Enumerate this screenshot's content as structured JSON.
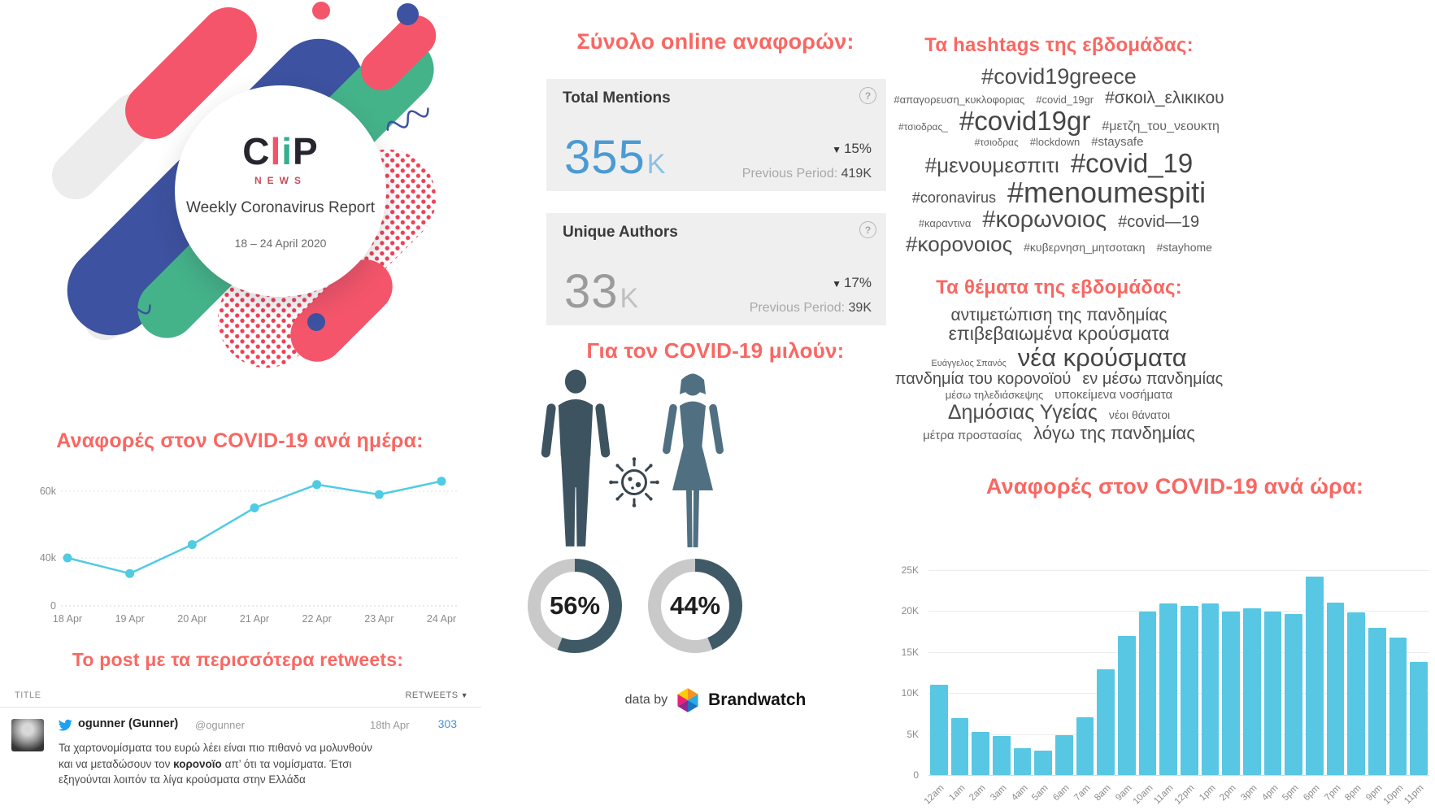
{
  "colors": {
    "accent_red": "#f96762",
    "bar_cyan": "#57c7e3",
    "line_cyan": "#4fcbe3",
    "mentions_blue": "#4b9bd3",
    "authors_gray": "#9b9b9b",
    "donut_dark": "#3f5a66",
    "donut_rest": "#c9c9c9",
    "male_fill": "#3d5360",
    "female_fill": "#507082",
    "twitter_blue": "#1da1f2",
    "retweet_blue": "#4a90d9"
  },
  "logo": {
    "letters": [
      {
        "t": "C"
      },
      {
        "t": "l"
      },
      {
        "t": "i"
      },
      {
        "t": "P"
      }
    ],
    "subbrand": "NEWS",
    "report_title": "Weekly Coronavirus Report",
    "date_range": "18 – 24 April 2020"
  },
  "left": {
    "daily_heading": "Αναφορές στον COVID-19 ανά ημέρα:",
    "top_post_heading": "Το post με τα περισσότερα retweets:",
    "table": {
      "col_title": "TITLE",
      "col_retweets": "RETWEETS",
      "sort_arrow": "▼",
      "author": "ogunner (Gunner)",
      "handle": "@ogunner",
      "date": "18th Apr",
      "retweets": "303",
      "text_before": "Τα χαρτονομίσματα του ευρώ λέει είναι πιο πιθανό να μολυνθούν και να μεταδώσουν τον ",
      "text_bold": "κορονοϊο",
      "text_after": " απ’ ότι τα νομίσματα. Έτσι εξηγούνται λοιπόν τα λίγα κρούσματα στην Ελλάδα"
    }
  },
  "middle": {
    "totals_heading": "Σύνολο online αναφορών:",
    "panels": [
      {
        "label": "Total Mentions",
        "value": "355",
        "unit": "K",
        "arrow": "▼",
        "change": "15%",
        "prev_label": "Previous Period:",
        "prev_value": "419K",
        "help": "?"
      },
      {
        "label": "Unique Authors",
        "value": "33",
        "unit": "K",
        "arrow": "▼",
        "change": "17%",
        "prev_label": "Previous Period:",
        "prev_value": "39K",
        "help": "?"
      }
    ],
    "who_heading": "Για τον COVID-19 μιλούν:",
    "male_pct": "56%",
    "female_pct": "44%",
    "attribution_prefix": "data by",
    "attribution_brand": "Brandwatch"
  },
  "right": {
    "hashtags_heading": "Τα hashtags της εβδομάδας:",
    "topics_heading": "Τα θέματα της εβδομάδας:",
    "hourly_heading": "Αναφορές στον COVID-19 ανά ώρα:"
  },
  "hashtag_cloud": {
    "lines": [
      [
        {
          "t": "#covid19greece",
          "s": 27
        }
      ],
      [
        {
          "t": "#απαγορευση_κυκλοφοριας",
          "s": 13
        },
        {
          "t": "#covid_19gr",
          "s": 13
        },
        {
          "t": "#σκοιλ_ελικικου",
          "s": 21
        }
      ],
      [
        {
          "t": "#τσιοδρας_",
          "s": 12
        },
        {
          "t": "#covid19gr",
          "s": 33
        },
        {
          "t": "#μετζη_του_νεουκτη",
          "s": 16
        }
      ],
      [
        {
          "t": "#τσιοδρας",
          "s": 12
        },
        {
          "t": "#lockdown",
          "s": 13
        },
        {
          "t": "#staysafe",
          "s": 15
        }
      ],
      [
        {
          "t": "#μενουμεσπιτι",
          "s": 26
        },
        {
          "t": "#covid_19",
          "s": 33
        }
      ],
      [
        {
          "t": "#coronavirus",
          "s": 18
        },
        {
          "t": "#menoumespiti",
          "s": 36
        }
      ],
      [
        {
          "t": "#καραντινα",
          "s": 13
        },
        {
          "t": "#κορωνοιος",
          "s": 29
        },
        {
          "t": "#covid—19",
          "s": 20
        }
      ],
      [
        {
          "t": "#κορονοιος",
          "s": 26
        },
        {
          "t": "#κυβερνηση_μητσοτακη",
          "s": 14
        },
        {
          "t": "#stayhome",
          "s": 14
        }
      ]
    ]
  },
  "topic_cloud": {
    "lines": [
      [
        {
          "t": "αντιμετώπιση της πανδημίας",
          "s": 21
        }
      ],
      [
        {
          "t": "επιβεβαιωμένα κρούσματα",
          "s": 23
        }
      ],
      [
        {
          "t": "Ευάγγελος Σπανός",
          "s": 11
        },
        {
          "t": "νέα κρούσματα",
          "s": 31
        }
      ],
      [
        {
          "t": "πανδημία του κορονοϊού",
          "s": 20
        },
        {
          "t": "εν μέσω πανδημίας",
          "s": 20
        }
      ],
      [
        {
          "t": "μέσω τηλεδιάσκεψης",
          "s": 13
        },
        {
          "t": "υποκείμενα νοσήματα",
          "s": 15
        }
      ],
      [
        {
          "t": "Δημόσιας Υγείας",
          "s": 25
        },
        {
          "t": "νέοι θάνατοι",
          "s": 14
        }
      ],
      [
        {
          "t": "μέτρα προστασίας",
          "s": 15
        },
        {
          "t": "λόγω της πανδημίας",
          "s": 22
        }
      ]
    ]
  },
  "chart_data": [
    {
      "id": "daily_mentions",
      "type": "line",
      "title": "Αναφορές στον COVID-19 ανά ημέρα:",
      "x": [
        "18 Apr",
        "19 Apr",
        "20 Apr",
        "21 Apr",
        "22 Apr",
        "23 Apr",
        "24 Apr"
      ],
      "values": [
        40000,
        27000,
        44000,
        55000,
        62000,
        59000,
        63000
      ],
      "ylim": [
        0,
        70000
      ],
      "yticks": [
        "0",
        "40k",
        "60k"
      ],
      "grid": true,
      "legend": false
    },
    {
      "id": "hourly_mentions",
      "type": "bar",
      "title": "Αναφορές στον COVID-19 ανά ώρα:",
      "categories": [
        "12am",
        "1am",
        "2am",
        "3am",
        "4am",
        "5am",
        "6am",
        "7am",
        "8am",
        "9am",
        "10am",
        "11am",
        "12pm",
        "1pm",
        "2pm",
        "3pm",
        "4pm",
        "5pm",
        "6pm",
        "7pm",
        "8pm",
        "9pm",
        "10pm",
        "11pm"
      ],
      "values": [
        11000,
        6900,
        5200,
        4800,
        3300,
        3000,
        4900,
        7000,
        12900,
        16900,
        19900,
        20900,
        20600,
        20900,
        19900,
        20300,
        19900,
        19600,
        24200,
        21000,
        19800,
        17900,
        16700,
        13800
      ],
      "ylim": [
        0,
        25000
      ],
      "yticks": [
        "0",
        "5K",
        "10K",
        "15K",
        "20K",
        "25K"
      ],
      "grid": true,
      "legend": false
    },
    {
      "id": "gender_share",
      "type": "pie",
      "title": "Για τον COVID-19 μιλούν:",
      "slices": [
        {
          "label": "male",
          "value": 56
        },
        {
          "label": "female",
          "value": 44
        }
      ]
    }
  ]
}
